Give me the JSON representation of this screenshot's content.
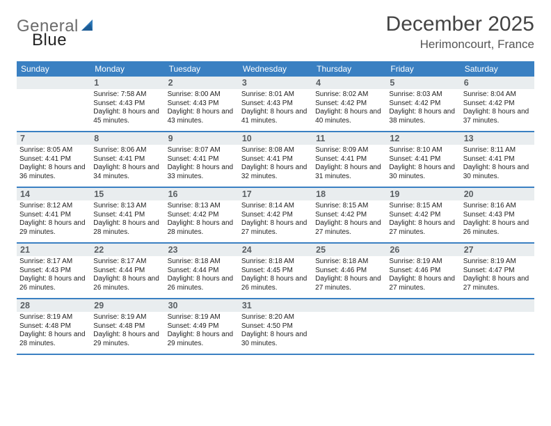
{
  "logo": {
    "text1": "General",
    "text2": "Blue"
  },
  "title": "December 2025",
  "location": "Herimoncourt, France",
  "colors": {
    "header_bg": "#3a80c2",
    "header_text": "#ffffff",
    "daynum_bg": "#e9edef",
    "daynum_text": "#5a5f63",
    "body_text": "#222222",
    "rule": "#3a80c2",
    "logo_gray": "#6b6b6b",
    "logo_blue": "#2d78b7",
    "title_color": "#444444",
    "location_color": "#555555"
  },
  "dow": [
    "Sunday",
    "Monday",
    "Tuesday",
    "Wednesday",
    "Thursday",
    "Friday",
    "Saturday"
  ],
  "weeks": [
    [
      {
        "n": "",
        "sunrise": "",
        "sunset": "",
        "daylight": ""
      },
      {
        "n": "1",
        "sunrise": "Sunrise: 7:58 AM",
        "sunset": "Sunset: 4:43 PM",
        "daylight": "Daylight: 8 hours and 45 minutes."
      },
      {
        "n": "2",
        "sunrise": "Sunrise: 8:00 AM",
        "sunset": "Sunset: 4:43 PM",
        "daylight": "Daylight: 8 hours and 43 minutes."
      },
      {
        "n": "3",
        "sunrise": "Sunrise: 8:01 AM",
        "sunset": "Sunset: 4:43 PM",
        "daylight": "Daylight: 8 hours and 41 minutes."
      },
      {
        "n": "4",
        "sunrise": "Sunrise: 8:02 AM",
        "sunset": "Sunset: 4:42 PM",
        "daylight": "Daylight: 8 hours and 40 minutes."
      },
      {
        "n": "5",
        "sunrise": "Sunrise: 8:03 AM",
        "sunset": "Sunset: 4:42 PM",
        "daylight": "Daylight: 8 hours and 38 minutes."
      },
      {
        "n": "6",
        "sunrise": "Sunrise: 8:04 AM",
        "sunset": "Sunset: 4:42 PM",
        "daylight": "Daylight: 8 hours and 37 minutes."
      }
    ],
    [
      {
        "n": "7",
        "sunrise": "Sunrise: 8:05 AM",
        "sunset": "Sunset: 4:41 PM",
        "daylight": "Daylight: 8 hours and 36 minutes."
      },
      {
        "n": "8",
        "sunrise": "Sunrise: 8:06 AM",
        "sunset": "Sunset: 4:41 PM",
        "daylight": "Daylight: 8 hours and 34 minutes."
      },
      {
        "n": "9",
        "sunrise": "Sunrise: 8:07 AM",
        "sunset": "Sunset: 4:41 PM",
        "daylight": "Daylight: 8 hours and 33 minutes."
      },
      {
        "n": "10",
        "sunrise": "Sunrise: 8:08 AM",
        "sunset": "Sunset: 4:41 PM",
        "daylight": "Daylight: 8 hours and 32 minutes."
      },
      {
        "n": "11",
        "sunrise": "Sunrise: 8:09 AM",
        "sunset": "Sunset: 4:41 PM",
        "daylight": "Daylight: 8 hours and 31 minutes."
      },
      {
        "n": "12",
        "sunrise": "Sunrise: 8:10 AM",
        "sunset": "Sunset: 4:41 PM",
        "daylight": "Daylight: 8 hours and 30 minutes."
      },
      {
        "n": "13",
        "sunrise": "Sunrise: 8:11 AM",
        "sunset": "Sunset: 4:41 PM",
        "daylight": "Daylight: 8 hours and 30 minutes."
      }
    ],
    [
      {
        "n": "14",
        "sunrise": "Sunrise: 8:12 AM",
        "sunset": "Sunset: 4:41 PM",
        "daylight": "Daylight: 8 hours and 29 minutes."
      },
      {
        "n": "15",
        "sunrise": "Sunrise: 8:13 AM",
        "sunset": "Sunset: 4:41 PM",
        "daylight": "Daylight: 8 hours and 28 minutes."
      },
      {
        "n": "16",
        "sunrise": "Sunrise: 8:13 AM",
        "sunset": "Sunset: 4:42 PM",
        "daylight": "Daylight: 8 hours and 28 minutes."
      },
      {
        "n": "17",
        "sunrise": "Sunrise: 8:14 AM",
        "sunset": "Sunset: 4:42 PM",
        "daylight": "Daylight: 8 hours and 27 minutes."
      },
      {
        "n": "18",
        "sunrise": "Sunrise: 8:15 AM",
        "sunset": "Sunset: 4:42 PM",
        "daylight": "Daylight: 8 hours and 27 minutes."
      },
      {
        "n": "19",
        "sunrise": "Sunrise: 8:15 AM",
        "sunset": "Sunset: 4:42 PM",
        "daylight": "Daylight: 8 hours and 27 minutes."
      },
      {
        "n": "20",
        "sunrise": "Sunrise: 8:16 AM",
        "sunset": "Sunset: 4:43 PM",
        "daylight": "Daylight: 8 hours and 26 minutes."
      }
    ],
    [
      {
        "n": "21",
        "sunrise": "Sunrise: 8:17 AM",
        "sunset": "Sunset: 4:43 PM",
        "daylight": "Daylight: 8 hours and 26 minutes."
      },
      {
        "n": "22",
        "sunrise": "Sunrise: 8:17 AM",
        "sunset": "Sunset: 4:44 PM",
        "daylight": "Daylight: 8 hours and 26 minutes."
      },
      {
        "n": "23",
        "sunrise": "Sunrise: 8:18 AM",
        "sunset": "Sunset: 4:44 PM",
        "daylight": "Daylight: 8 hours and 26 minutes."
      },
      {
        "n": "24",
        "sunrise": "Sunrise: 8:18 AM",
        "sunset": "Sunset: 4:45 PM",
        "daylight": "Daylight: 8 hours and 26 minutes."
      },
      {
        "n": "25",
        "sunrise": "Sunrise: 8:18 AM",
        "sunset": "Sunset: 4:46 PM",
        "daylight": "Daylight: 8 hours and 27 minutes."
      },
      {
        "n": "26",
        "sunrise": "Sunrise: 8:19 AM",
        "sunset": "Sunset: 4:46 PM",
        "daylight": "Daylight: 8 hours and 27 minutes."
      },
      {
        "n": "27",
        "sunrise": "Sunrise: 8:19 AM",
        "sunset": "Sunset: 4:47 PM",
        "daylight": "Daylight: 8 hours and 27 minutes."
      }
    ],
    [
      {
        "n": "28",
        "sunrise": "Sunrise: 8:19 AM",
        "sunset": "Sunset: 4:48 PM",
        "daylight": "Daylight: 8 hours and 28 minutes."
      },
      {
        "n": "29",
        "sunrise": "Sunrise: 8:19 AM",
        "sunset": "Sunset: 4:48 PM",
        "daylight": "Daylight: 8 hours and 29 minutes."
      },
      {
        "n": "30",
        "sunrise": "Sunrise: 8:19 AM",
        "sunset": "Sunset: 4:49 PM",
        "daylight": "Daylight: 8 hours and 29 minutes."
      },
      {
        "n": "31",
        "sunrise": "Sunrise: 8:20 AM",
        "sunset": "Sunset: 4:50 PM",
        "daylight": "Daylight: 8 hours and 30 minutes."
      },
      {
        "n": "",
        "sunrise": "",
        "sunset": "",
        "daylight": ""
      },
      {
        "n": "",
        "sunrise": "",
        "sunset": "",
        "daylight": ""
      },
      {
        "n": "",
        "sunrise": "",
        "sunset": "",
        "daylight": ""
      }
    ]
  ]
}
